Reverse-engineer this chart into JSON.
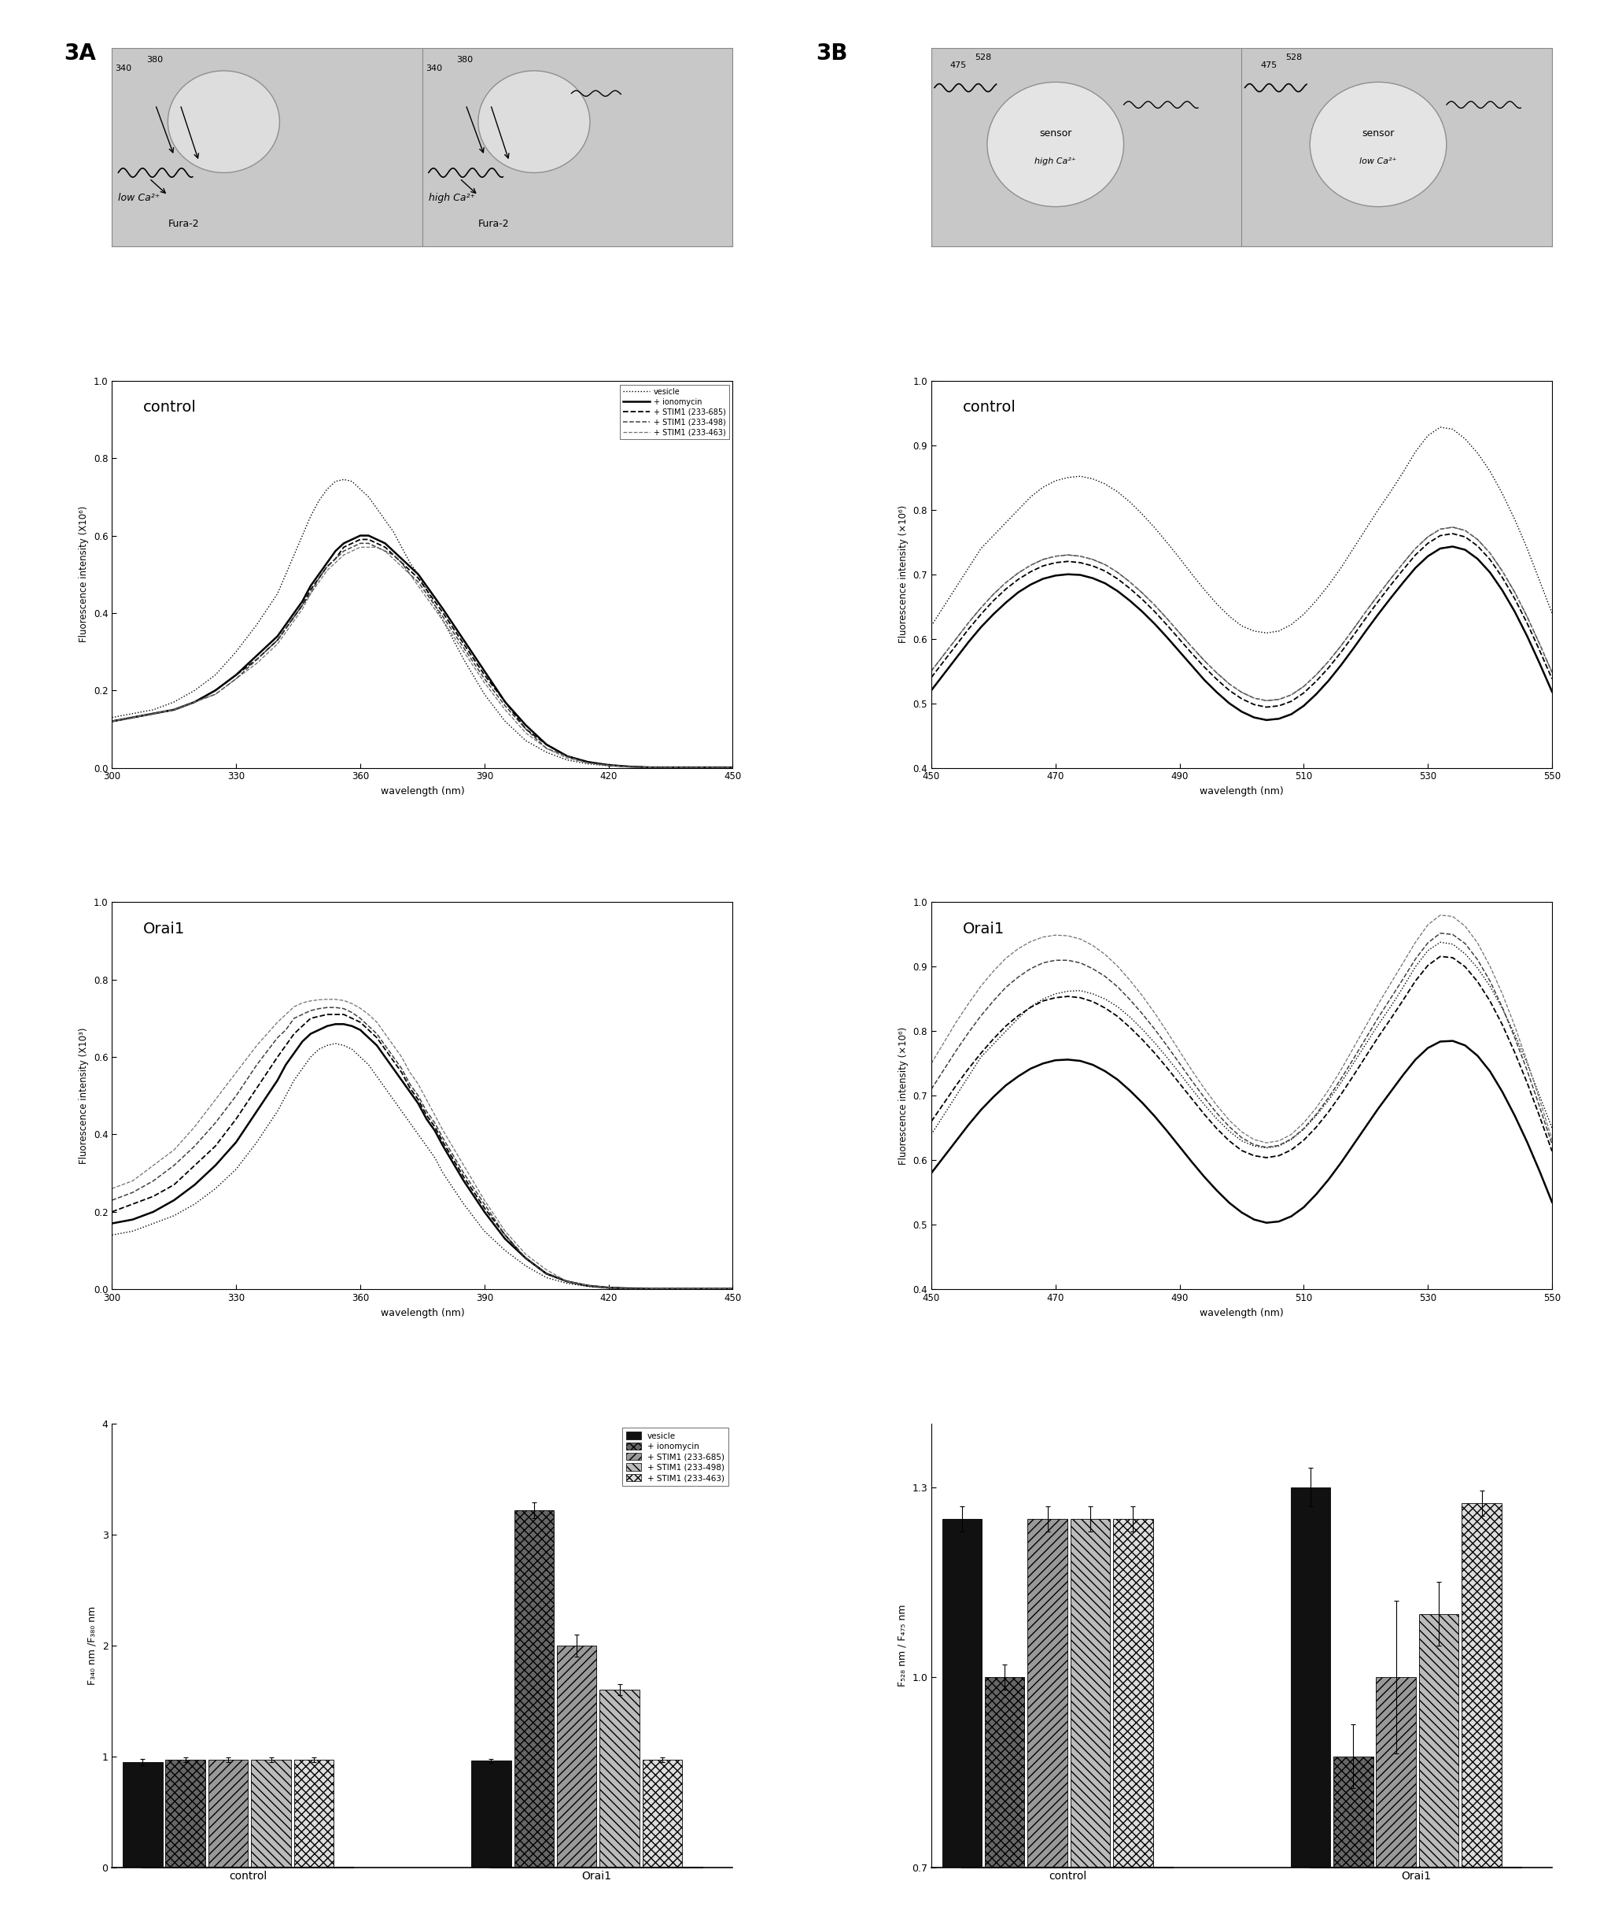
{
  "legend_labels": [
    "vesicle",
    "+ ionomycin",
    "+ STIM1 (233-685)",
    "+ STIM1 (233-498)",
    "+ STIM1 (233-463)"
  ],
  "fura_control_x": [
    300,
    305,
    310,
    315,
    320,
    325,
    330,
    335,
    340,
    342,
    344,
    346,
    348,
    350,
    352,
    354,
    356,
    358,
    360,
    362,
    364,
    366,
    368,
    370,
    372,
    374,
    376,
    378,
    380,
    385,
    390,
    395,
    400,
    405,
    410,
    415,
    420,
    425,
    430,
    435,
    440,
    445,
    450
  ],
  "fura_control_vesicle": [
    0.13,
    0.14,
    0.15,
    0.17,
    0.2,
    0.24,
    0.3,
    0.37,
    0.45,
    0.5,
    0.55,
    0.6,
    0.65,
    0.69,
    0.72,
    0.74,
    0.745,
    0.74,
    0.72,
    0.7,
    0.67,
    0.64,
    0.61,
    0.57,
    0.53,
    0.5,
    0.46,
    0.42,
    0.38,
    0.28,
    0.19,
    0.12,
    0.07,
    0.04,
    0.02,
    0.01,
    0.005,
    0.003,
    0.001,
    0.001,
    0.001,
    0.001,
    0.001
  ],
  "fura_control_ionomycin": [
    0.12,
    0.13,
    0.14,
    0.15,
    0.17,
    0.2,
    0.24,
    0.29,
    0.34,
    0.37,
    0.4,
    0.43,
    0.47,
    0.5,
    0.53,
    0.56,
    0.58,
    0.59,
    0.6,
    0.6,
    0.59,
    0.58,
    0.56,
    0.54,
    0.52,
    0.5,
    0.47,
    0.44,
    0.41,
    0.33,
    0.25,
    0.17,
    0.11,
    0.06,
    0.03,
    0.015,
    0.007,
    0.003,
    0.001,
    0.001,
    0.001,
    0.001,
    0.001
  ],
  "fura_control_stim1_685": [
    0.12,
    0.13,
    0.14,
    0.15,
    0.17,
    0.2,
    0.24,
    0.28,
    0.33,
    0.36,
    0.39,
    0.42,
    0.46,
    0.49,
    0.52,
    0.54,
    0.57,
    0.58,
    0.59,
    0.59,
    0.58,
    0.57,
    0.55,
    0.53,
    0.51,
    0.49,
    0.46,
    0.43,
    0.4,
    0.32,
    0.24,
    0.17,
    0.1,
    0.06,
    0.03,
    0.014,
    0.007,
    0.003,
    0.001,
    0.001,
    0.001,
    0.001,
    0.001
  ],
  "fura_control_stim1_498": [
    0.12,
    0.13,
    0.14,
    0.15,
    0.17,
    0.19,
    0.23,
    0.28,
    0.33,
    0.36,
    0.39,
    0.42,
    0.45,
    0.49,
    0.52,
    0.54,
    0.56,
    0.57,
    0.58,
    0.58,
    0.57,
    0.56,
    0.55,
    0.53,
    0.5,
    0.48,
    0.45,
    0.42,
    0.39,
    0.31,
    0.23,
    0.16,
    0.1,
    0.05,
    0.03,
    0.013,
    0.006,
    0.003,
    0.001,
    0.001,
    0.001,
    0.001,
    0.001
  ],
  "fura_control_stim1_463": [
    0.12,
    0.13,
    0.14,
    0.15,
    0.17,
    0.19,
    0.23,
    0.27,
    0.32,
    0.35,
    0.38,
    0.41,
    0.45,
    0.48,
    0.51,
    0.53,
    0.55,
    0.56,
    0.57,
    0.57,
    0.57,
    0.56,
    0.54,
    0.52,
    0.5,
    0.47,
    0.44,
    0.41,
    0.38,
    0.3,
    0.22,
    0.15,
    0.09,
    0.05,
    0.025,
    0.012,
    0.006,
    0.002,
    0.001,
    0.001,
    0.001,
    0.001,
    0.001
  ],
  "fura_orai1_x": [
    300,
    305,
    310,
    315,
    320,
    325,
    330,
    335,
    340,
    342,
    344,
    346,
    348,
    350,
    352,
    354,
    356,
    358,
    360,
    362,
    364,
    366,
    368,
    370,
    372,
    374,
    376,
    378,
    380,
    385,
    390,
    395,
    400,
    405,
    410,
    415,
    420,
    425,
    430,
    435,
    440,
    445,
    450
  ],
  "fura_orai1_vesicle": [
    0.14,
    0.15,
    0.17,
    0.19,
    0.22,
    0.26,
    0.31,
    0.38,
    0.46,
    0.5,
    0.54,
    0.57,
    0.6,
    0.62,
    0.63,
    0.635,
    0.63,
    0.62,
    0.6,
    0.58,
    0.55,
    0.52,
    0.49,
    0.46,
    0.43,
    0.4,
    0.37,
    0.34,
    0.3,
    0.22,
    0.15,
    0.1,
    0.06,
    0.03,
    0.015,
    0.007,
    0.003,
    0.001,
    0.001,
    0.001,
    0.001,
    0.001,
    0.001
  ],
  "fura_orai1_ionomycin": [
    0.17,
    0.18,
    0.2,
    0.23,
    0.27,
    0.32,
    0.38,
    0.46,
    0.54,
    0.58,
    0.61,
    0.64,
    0.66,
    0.67,
    0.68,
    0.685,
    0.685,
    0.68,
    0.67,
    0.65,
    0.63,
    0.6,
    0.57,
    0.54,
    0.51,
    0.48,
    0.44,
    0.41,
    0.37,
    0.28,
    0.2,
    0.13,
    0.08,
    0.04,
    0.02,
    0.009,
    0.004,
    0.002,
    0.001,
    0.001,
    0.001,
    0.001,
    0.001
  ],
  "fura_orai1_stim1_685": [
    0.2,
    0.22,
    0.24,
    0.27,
    0.32,
    0.37,
    0.44,
    0.52,
    0.6,
    0.63,
    0.66,
    0.68,
    0.7,
    0.705,
    0.71,
    0.71,
    0.71,
    0.7,
    0.69,
    0.67,
    0.65,
    0.62,
    0.59,
    0.56,
    0.52,
    0.49,
    0.45,
    0.42,
    0.38,
    0.29,
    0.21,
    0.14,
    0.08,
    0.04,
    0.02,
    0.009,
    0.004,
    0.002,
    0.001,
    0.001,
    0.001,
    0.001,
    0.001
  ],
  "fura_orai1_stim1_498": [
    0.23,
    0.25,
    0.28,
    0.32,
    0.37,
    0.43,
    0.5,
    0.58,
    0.65,
    0.67,
    0.7,
    0.71,
    0.72,
    0.725,
    0.728,
    0.728,
    0.725,
    0.715,
    0.7,
    0.68,
    0.66,
    0.63,
    0.6,
    0.57,
    0.53,
    0.5,
    0.46,
    0.43,
    0.39,
    0.3,
    0.22,
    0.14,
    0.08,
    0.04,
    0.02,
    0.009,
    0.004,
    0.001,
    0.001,
    0.001,
    0.001,
    0.001,
    0.001
  ],
  "fura_orai1_stim1_463": [
    0.26,
    0.28,
    0.32,
    0.36,
    0.42,
    0.49,
    0.56,
    0.63,
    0.69,
    0.71,
    0.73,
    0.74,
    0.745,
    0.748,
    0.749,
    0.749,
    0.746,
    0.738,
    0.726,
    0.71,
    0.69,
    0.66,
    0.63,
    0.6,
    0.56,
    0.53,
    0.49,
    0.45,
    0.41,
    0.32,
    0.23,
    0.15,
    0.09,
    0.05,
    0.02,
    0.01,
    0.004,
    0.001,
    0.001,
    0.001,
    0.001,
    0.001,
    0.001
  ],
  "sensor_control_x": [
    450,
    452,
    454,
    456,
    458,
    460,
    462,
    464,
    466,
    468,
    470,
    472,
    474,
    476,
    478,
    480,
    482,
    484,
    486,
    488,
    490,
    492,
    494,
    496,
    498,
    500,
    502,
    504,
    506,
    508,
    510,
    512,
    514,
    516,
    518,
    520,
    522,
    524,
    526,
    528,
    530,
    532,
    534,
    536,
    538,
    540,
    542,
    544,
    546,
    548,
    550
  ],
  "sensor_control_vesicle": [
    0.62,
    0.65,
    0.68,
    0.71,
    0.74,
    0.76,
    0.78,
    0.8,
    0.82,
    0.835,
    0.845,
    0.85,
    0.852,
    0.848,
    0.84,
    0.828,
    0.812,
    0.793,
    0.772,
    0.749,
    0.725,
    0.7,
    0.676,
    0.654,
    0.635,
    0.62,
    0.612,
    0.609,
    0.612,
    0.622,
    0.638,
    0.659,
    0.683,
    0.71,
    0.74,
    0.77,
    0.8,
    0.828,
    0.858,
    0.89,
    0.915,
    0.928,
    0.925,
    0.91,
    0.888,
    0.86,
    0.825,
    0.785,
    0.74,
    0.69,
    0.64
  ],
  "sensor_control_ionomycin": [
    0.52,
    0.545,
    0.57,
    0.595,
    0.618,
    0.638,
    0.656,
    0.672,
    0.684,
    0.693,
    0.698,
    0.7,
    0.699,
    0.694,
    0.686,
    0.674,
    0.659,
    0.642,
    0.623,
    0.602,
    0.58,
    0.558,
    0.536,
    0.517,
    0.5,
    0.487,
    0.478,
    0.474,
    0.476,
    0.483,
    0.496,
    0.514,
    0.535,
    0.559,
    0.585,
    0.612,
    0.638,
    0.663,
    0.687,
    0.71,
    0.728,
    0.74,
    0.743,
    0.738,
    0.724,
    0.703,
    0.675,
    0.642,
    0.604,
    0.562,
    0.518
  ],
  "sensor_control_stim1_685": [
    0.54,
    0.565,
    0.59,
    0.615,
    0.638,
    0.659,
    0.677,
    0.692,
    0.704,
    0.713,
    0.718,
    0.72,
    0.718,
    0.713,
    0.705,
    0.693,
    0.678,
    0.661,
    0.642,
    0.621,
    0.599,
    0.577,
    0.556,
    0.537,
    0.52,
    0.507,
    0.498,
    0.494,
    0.496,
    0.503,
    0.516,
    0.534,
    0.555,
    0.579,
    0.605,
    0.632,
    0.658,
    0.683,
    0.707,
    0.73,
    0.748,
    0.76,
    0.763,
    0.758,
    0.744,
    0.723,
    0.695,
    0.662,
    0.624,
    0.582,
    0.538
  ],
  "sensor_control_stim1_498": [
    0.55,
    0.575,
    0.6,
    0.625,
    0.648,
    0.669,
    0.687,
    0.702,
    0.714,
    0.723,
    0.728,
    0.73,
    0.728,
    0.723,
    0.715,
    0.703,
    0.688,
    0.671,
    0.652,
    0.631,
    0.609,
    0.587,
    0.566,
    0.547,
    0.53,
    0.517,
    0.508,
    0.504,
    0.506,
    0.513,
    0.526,
    0.544,
    0.565,
    0.589,
    0.615,
    0.642,
    0.668,
    0.693,
    0.717,
    0.74,
    0.758,
    0.77,
    0.773,
    0.768,
    0.754,
    0.733,
    0.705,
    0.672,
    0.634,
    0.592,
    0.548
  ],
  "sensor_control_stim1_463": [
    0.55,
    0.575,
    0.6,
    0.625,
    0.648,
    0.669,
    0.687,
    0.702,
    0.714,
    0.723,
    0.728,
    0.73,
    0.728,
    0.723,
    0.715,
    0.703,
    0.688,
    0.671,
    0.652,
    0.631,
    0.609,
    0.587,
    0.566,
    0.547,
    0.53,
    0.517,
    0.508,
    0.504,
    0.506,
    0.513,
    0.526,
    0.544,
    0.565,
    0.589,
    0.615,
    0.642,
    0.668,
    0.693,
    0.717,
    0.74,
    0.758,
    0.77,
    0.773,
    0.768,
    0.754,
    0.733,
    0.705,
    0.672,
    0.634,
    0.592,
    0.548
  ],
  "sensor_orai1_x": [
    450,
    452,
    454,
    456,
    458,
    460,
    462,
    464,
    466,
    468,
    470,
    472,
    474,
    476,
    478,
    480,
    482,
    484,
    486,
    488,
    490,
    492,
    494,
    496,
    498,
    500,
    502,
    504,
    506,
    508,
    510,
    512,
    514,
    516,
    518,
    520,
    522,
    524,
    526,
    528,
    530,
    532,
    534,
    536,
    538,
    540,
    542,
    544,
    546,
    548,
    550
  ],
  "sensor_orai1_vesicle": [
    0.64,
    0.67,
    0.7,
    0.73,
    0.76,
    0.78,
    0.8,
    0.82,
    0.838,
    0.85,
    0.858,
    0.862,
    0.863,
    0.858,
    0.85,
    0.838,
    0.822,
    0.803,
    0.782,
    0.759,
    0.735,
    0.71,
    0.686,
    0.664,
    0.645,
    0.63,
    0.622,
    0.619,
    0.622,
    0.632,
    0.648,
    0.669,
    0.693,
    0.72,
    0.75,
    0.78,
    0.81,
    0.838,
    0.868,
    0.9,
    0.925,
    0.938,
    0.935,
    0.92,
    0.898,
    0.87,
    0.835,
    0.795,
    0.75,
    0.7,
    0.65
  ],
  "sensor_orai1_ionomycin": [
    0.58,
    0.605,
    0.63,
    0.655,
    0.678,
    0.698,
    0.716,
    0.73,
    0.742,
    0.75,
    0.755,
    0.756,
    0.754,
    0.748,
    0.738,
    0.725,
    0.708,
    0.689,
    0.668,
    0.645,
    0.621,
    0.597,
    0.574,
    0.553,
    0.534,
    0.519,
    0.508,
    0.503,
    0.505,
    0.513,
    0.527,
    0.547,
    0.57,
    0.596,
    0.624,
    0.652,
    0.68,
    0.706,
    0.732,
    0.756,
    0.774,
    0.784,
    0.785,
    0.778,
    0.762,
    0.738,
    0.706,
    0.669,
    0.628,
    0.583,
    0.535
  ],
  "sensor_orai1_stim1_685": [
    0.66,
    0.688,
    0.716,
    0.742,
    0.766,
    0.788,
    0.808,
    0.824,
    0.837,
    0.847,
    0.852,
    0.854,
    0.852,
    0.846,
    0.836,
    0.823,
    0.806,
    0.787,
    0.766,
    0.743,
    0.719,
    0.695,
    0.671,
    0.649,
    0.63,
    0.615,
    0.607,
    0.604,
    0.607,
    0.616,
    0.631,
    0.651,
    0.675,
    0.702,
    0.731,
    0.761,
    0.791,
    0.819,
    0.848,
    0.878,
    0.902,
    0.916,
    0.914,
    0.9,
    0.877,
    0.847,
    0.81,
    0.767,
    0.72,
    0.668,
    0.614
  ],
  "sensor_orai1_stim1_498": [
    0.71,
    0.74,
    0.77,
    0.798,
    0.824,
    0.847,
    0.868,
    0.884,
    0.897,
    0.906,
    0.91,
    0.91,
    0.906,
    0.897,
    0.885,
    0.869,
    0.849,
    0.827,
    0.803,
    0.777,
    0.75,
    0.723,
    0.697,
    0.673,
    0.652,
    0.635,
    0.624,
    0.62,
    0.623,
    0.633,
    0.649,
    0.671,
    0.697,
    0.726,
    0.757,
    0.789,
    0.821,
    0.851,
    0.881,
    0.912,
    0.937,
    0.952,
    0.95,
    0.936,
    0.911,
    0.878,
    0.837,
    0.79,
    0.739,
    0.683,
    0.625
  ],
  "sensor_orai1_stim1_463": [
    0.75,
    0.782,
    0.814,
    0.843,
    0.87,
    0.893,
    0.913,
    0.928,
    0.939,
    0.946,
    0.949,
    0.948,
    0.943,
    0.933,
    0.919,
    0.901,
    0.879,
    0.855,
    0.828,
    0.799,
    0.769,
    0.739,
    0.711,
    0.685,
    0.662,
    0.644,
    0.632,
    0.627,
    0.63,
    0.64,
    0.658,
    0.681,
    0.709,
    0.74,
    0.774,
    0.808,
    0.842,
    0.874,
    0.906,
    0.938,
    0.965,
    0.98,
    0.978,
    0.963,
    0.937,
    0.901,
    0.858,
    0.808,
    0.753,
    0.694,
    0.632
  ],
  "bar_A_control": [
    0.95,
    0.97,
    0.97,
    0.97,
    0.97
  ],
  "bar_A_control_err": [
    0.03,
    0.02,
    0.02,
    0.02,
    0.02
  ],
  "bar_A_orai1": [
    0.96,
    3.22,
    2.0,
    1.6,
    0.97
  ],
  "bar_A_orai1_err": [
    0.02,
    0.07,
    0.1,
    0.05,
    0.02
  ],
  "bar_B_control": [
    1.25,
    1.0,
    1.25,
    1.25,
    1.25
  ],
  "bar_B_control_err": [
    0.02,
    0.02,
    0.02,
    0.02,
    0.02
  ],
  "bar_B_orai1": [
    1.3,
    0.875,
    1.0,
    1.1,
    1.275
  ],
  "bar_B_orai1_err": [
    0.03,
    0.05,
    0.12,
    0.05,
    0.02
  ]
}
